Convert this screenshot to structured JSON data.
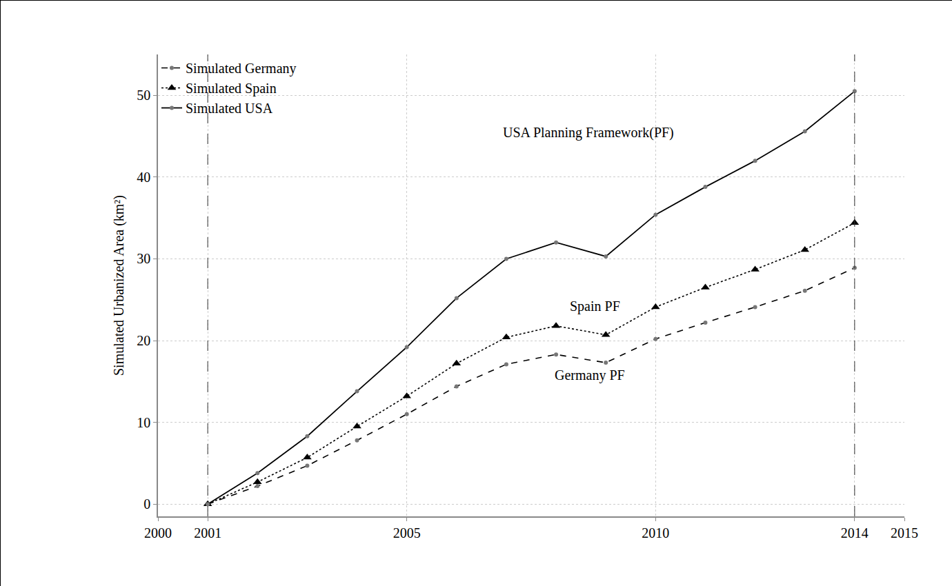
{
  "chart_data": {
    "type": "line",
    "y_label": "Simulated Urbanized Area (km²)",
    "x": [
      2001,
      2002,
      2003,
      2004,
      2005,
      2006,
      2007,
      2008,
      2009,
      2010,
      2011,
      2012,
      2013,
      2014
    ],
    "series": [
      {
        "name": "Simulated Germany",
        "color": "#000000",
        "line_style": "dash",
        "marker": "circle",
        "values": [
          0,
          2.2,
          4.7,
          7.8,
          11.0,
          14.4,
          17.1,
          18.3,
          17.3,
          20.2,
          22.2,
          24.1,
          26.1,
          28.9
        ]
      },
      {
        "name": "Simulated Spain",
        "color": "#000000",
        "line_style": "dot",
        "marker": "triangle-up",
        "values": [
          0,
          2.7,
          5.7,
          9.5,
          13.2,
          17.2,
          20.4,
          21.8,
          20.7,
          24.1,
          26.5,
          28.7,
          31.1,
          34.4
        ]
      },
      {
        "name": "Simulated USA",
        "color": "#000000",
        "line_style": "solid",
        "marker": "circle",
        "values": [
          0,
          3.8,
          8.3,
          13.8,
          19.2,
          25.2,
          30.0,
          32.0,
          30.3,
          35.4,
          38.8,
          42.0,
          45.6,
          50.5
        ]
      }
    ],
    "annotations": [
      "USA Planning Framework(PF)",
      "Spain PF",
      "Germany PF"
    ],
    "xlim": [
      2000,
      2015
    ],
    "xticks": [
      2000,
      2001,
      2005,
      2010,
      2014,
      2015
    ],
    "ylim": [
      -1.5,
      55
    ],
    "yticks": [
      0,
      10,
      20,
      30,
      40,
      50
    ],
    "grid": true,
    "legend": "top-left"
  }
}
